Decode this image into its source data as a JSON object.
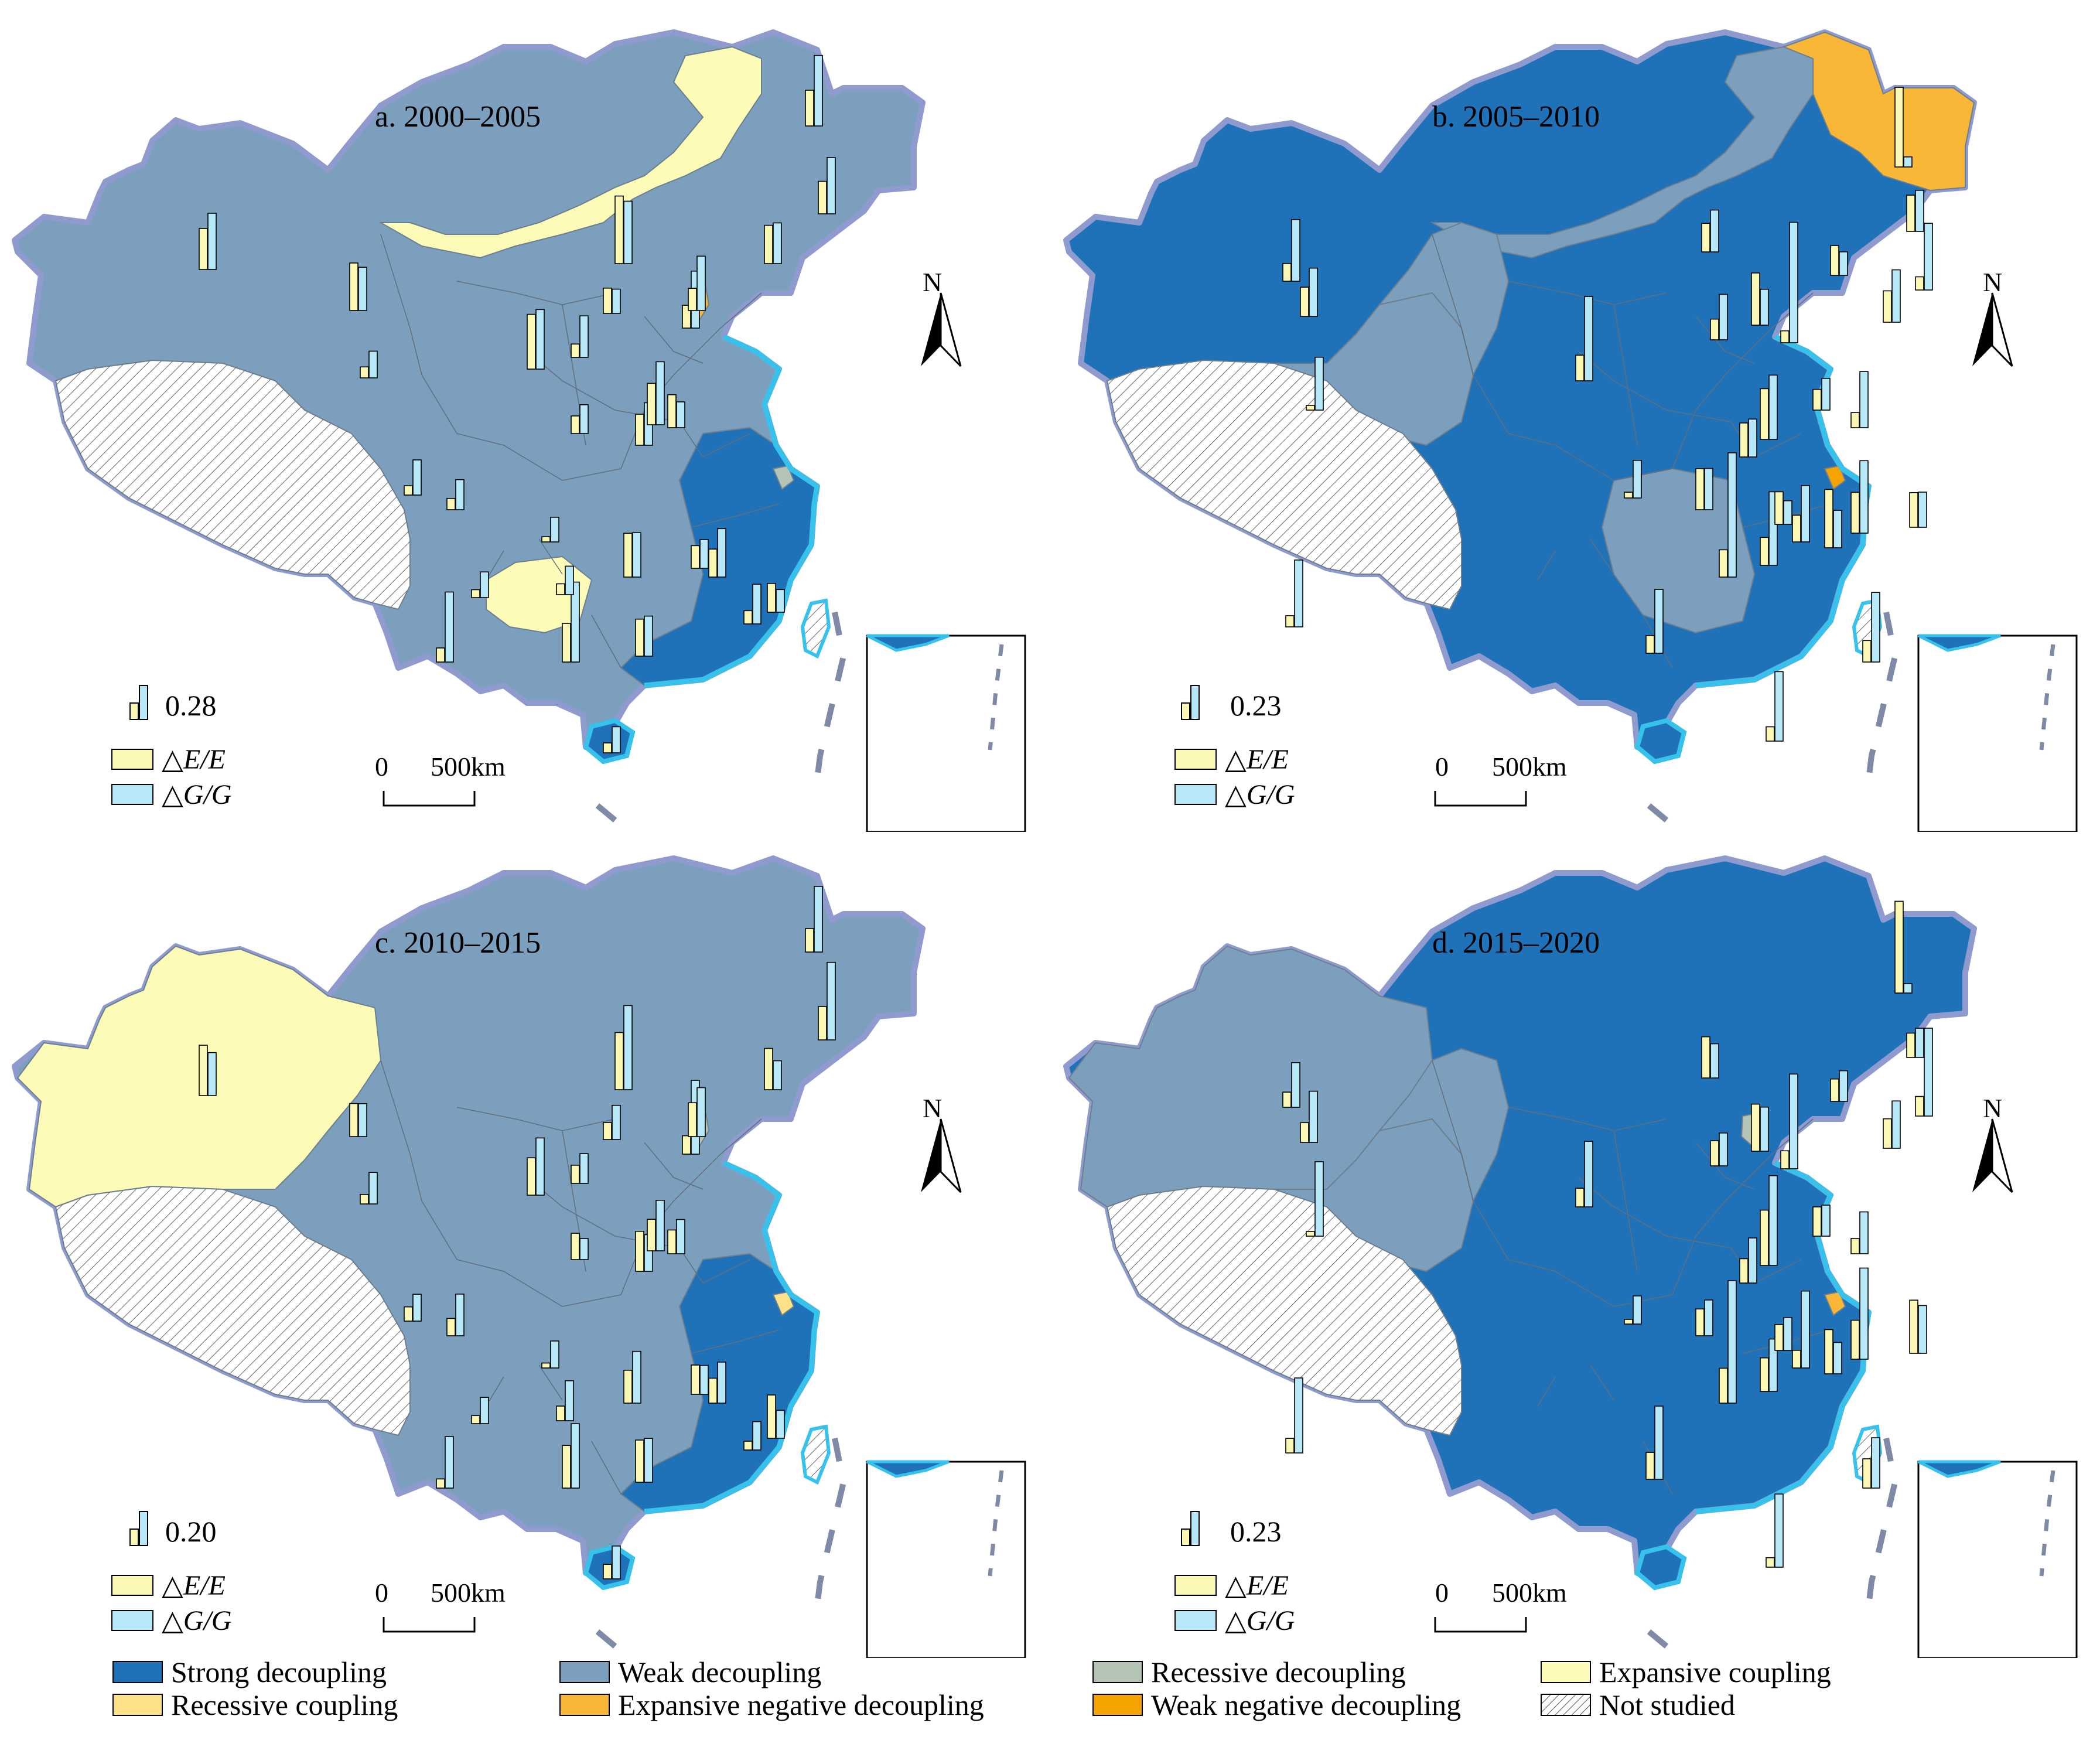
{
  "panels": [
    {
      "title": "a. 2000–2005",
      "legend_value": "0.28"
    },
    {
      "title": "b. 2005–2010",
      "legend_value": "0.23"
    },
    {
      "title": "c. 2010–2015",
      "legend_value": "0.20"
    },
    {
      "title": "d. 2015–2020",
      "legend_value": "0.23"
    }
  ],
  "bar_legend": {
    "energy_label": "△E/E",
    "gdp_label": "△G/G"
  },
  "scale": {
    "zero": "0",
    "value": "500",
    "unit": "km"
  },
  "north_label": "N",
  "legend": {
    "strong_decoupling": "Strong decoupling",
    "weak_decoupling": "Weak decoupling",
    "recessive_decoupling": "Recessive decoupling",
    "expansive_coupling": "Expansive coupling",
    "recessive_coupling": "Recessive coupling",
    "expansive_negative_decoupling": "Expansive negative decoupling",
    "weak_negative_decoupling": "Weak negative decoupling",
    "not_studied": "Not studied"
  },
  "colors": {
    "strong_decoupling": "#1f72b8",
    "weak_decoupling": "#7b9fbd",
    "recessive_decoupling": "#b4c4b5",
    "expansive_coupling": "#fcfcb8",
    "recessive_coupling": "#fde28a",
    "expansive_negative_decoupling": "#f9b737",
    "weak_negative_decoupling": "#f5a300",
    "energy_bar": "#fbf7b4",
    "gdp_bar": "#b7e8f7",
    "coast": "#37c2ec",
    "border": "#8f9bcf"
  },
  "chart_data": {
    "type": "map",
    "panels": [
      {
        "period": "2000–2005",
        "dominant_status": "Weak decoupling",
        "other_statuses": [
          "Expansive coupling",
          "Strong decoupling",
          "Expansive negative decoupling",
          "Recessive decoupling"
        ],
        "legend_bar_value": 0.28
      },
      {
        "period": "2005–2010",
        "dominant_status": "Strong decoupling",
        "other_statuses": [
          "Weak decoupling",
          "Expansive negative decoupling",
          "Weak negative decoupling"
        ],
        "legend_bar_value": 0.23
      },
      {
        "period": "2010–2015",
        "dominant_status": "Weak decoupling",
        "other_statuses": [
          "Expansive coupling",
          "Strong decoupling",
          "Recessive decoupling",
          "Recessive coupling"
        ],
        "legend_bar_value": 0.2
      },
      {
        "period": "2015–2020",
        "dominant_status": "Strong decoupling",
        "other_statuses": [
          "Weak decoupling",
          "Recessive decoupling",
          "Expansive negative decoupling"
        ],
        "legend_bar_value": 0.23
      }
    ]
  }
}
